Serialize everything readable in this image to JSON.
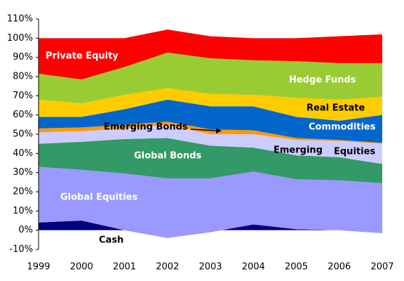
{
  "chart_data": {
    "type": "stacked_area",
    "x": [
      1999,
      2000,
      2001,
      2002,
      2003,
      2004,
      2005,
      2006,
      2007
    ],
    "xlim": [
      1999,
      2007
    ],
    "ylim": [
      -10,
      110
    ],
    "yticks": [
      {
        "value": -10,
        "label": "-10%"
      },
      {
        "value": 0,
        "label": "0%"
      },
      {
        "value": 10,
        "label": "10%"
      },
      {
        "value": 20,
        "label": "20%"
      },
      {
        "value": 30,
        "label": "30%"
      },
      {
        "value": 40,
        "label": "40%"
      },
      {
        "value": 50,
        "label": "50%"
      },
      {
        "value": 60,
        "label": "60%"
      },
      {
        "value": 70,
        "label": "70%"
      },
      {
        "value": 80,
        "label": "80%"
      },
      {
        "value": 90,
        "label": "90%"
      },
      {
        "value": 100,
        "label": "100%"
      },
      {
        "value": 110,
        "label": "110%"
      }
    ],
    "series": [
      {
        "name": "Cash",
        "color": "#000080",
        "values": [
          4,
          5,
          0,
          -4,
          -1,
          3,
          0.5,
          0,
          -1.5
        ]
      },
      {
        "name": "Global Equities",
        "color": "#9999ff",
        "values": [
          29,
          26.5,
          29.5,
          31,
          28,
          27.5,
          26,
          26,
          26
        ]
      },
      {
        "name": "Global Bonds",
        "color": "#339966",
        "values": [
          12,
          14.5,
          18,
          21,
          17,
          12.5,
          12.5,
          12,
          10
        ]
      },
      {
        "labels": [
          "Emerging",
          "Equities"
        ],
        "color": "#ccccff",
        "values": [
          6,
          5.5,
          5.5,
          7,
          6,
          7,
          8,
          8.5,
          10.5
        ]
      },
      {
        "name": "Emerging Bonds",
        "color": "#ff9900",
        "values": [
          2,
          2,
          2,
          1.5,
          2.5,
          2,
          1,
          0.5,
          0.5
        ]
      },
      {
        "name": "Commodities",
        "color": "#0066cc",
        "values": [
          6,
          5.5,
          8,
          11.5,
          12,
          12.5,
          11,
          10,
          14.5
        ]
      },
      {
        "name": "Real Estate",
        "color": "#ffcc00",
        "values": [
          9,
          7,
          7.5,
          6,
          6.5,
          6,
          10,
          11,
          9.5
        ]
      },
      {
        "name": "Hedge Funds",
        "color": "#99cc33",
        "values": [
          13.5,
          12.5,
          14.5,
          18.5,
          18.5,
          18,
          19,
          19,
          17.5
        ]
      },
      {
        "name": "Private Equity",
        "color": "#ff0000",
        "values": [
          18.5,
          21.5,
          15,
          12,
          11.5,
          11.5,
          12,
          14,
          15
        ]
      }
    ]
  }
}
